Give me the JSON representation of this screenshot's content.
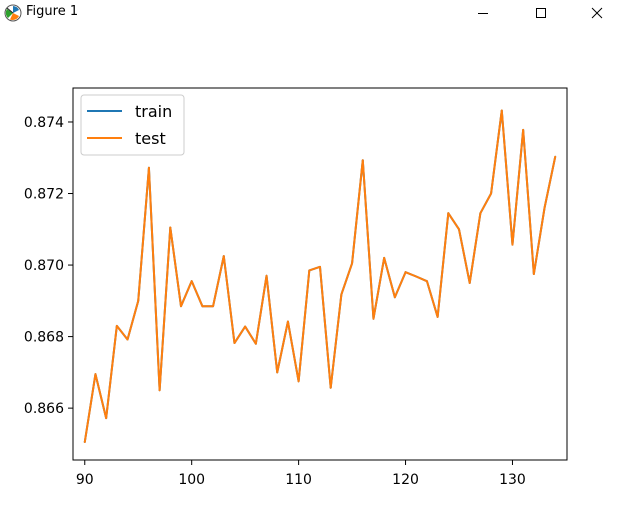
{
  "window": {
    "title": "Figure 1",
    "icon": "matplotlib-icon",
    "controls": [
      "minimize-icon",
      "maximize-icon",
      "close-icon"
    ]
  },
  "chart_data": {
    "type": "line",
    "title": "",
    "xlabel": "",
    "ylabel": "",
    "xlim": [
      88.9,
      135.1
    ],
    "ylim": [
      0.86455,
      0.87495
    ],
    "xticks": [
      90,
      100,
      110,
      120,
      130
    ],
    "yticks": [
      0.866,
      0.868,
      0.87,
      0.872,
      0.874
    ],
    "ytick_labels": [
      "0.866",
      "0.868",
      "0.870",
      "0.872",
      "0.874"
    ],
    "grid": false,
    "legend_position": "top-left",
    "x": [
      90,
      91,
      92,
      93,
      94,
      95,
      96,
      97,
      98,
      99,
      100,
      101,
      102,
      103,
      104,
      105,
      106,
      107,
      108,
      109,
      110,
      111,
      112,
      113,
      114,
      115,
      116,
      117,
      118,
      119,
      120,
      121,
      122,
      123,
      124,
      125,
      126,
      127,
      128,
      129,
      130,
      131,
      132,
      133,
      134
    ],
    "series": [
      {
        "name": "train",
        "color": "#1f77b4",
        "values": [
          0.86505,
          0.86695,
          0.86572,
          0.8683,
          0.86792,
          0.869,
          0.87272,
          0.8665,
          0.87105,
          0.86885,
          0.86955,
          0.86885,
          0.86885,
          0.87025,
          0.86782,
          0.86828,
          0.8678,
          0.8697,
          0.867,
          0.86842,
          0.86675,
          0.86985,
          0.86995,
          0.86657,
          0.86918,
          0.87005,
          0.87293,
          0.8685,
          0.8702,
          0.8691,
          0.8698,
          0.86968,
          0.86955,
          0.86855,
          0.87145,
          0.871,
          0.8695,
          0.87145,
          0.872,
          0.87432,
          0.87057,
          0.87378,
          0.86975,
          0.8716,
          0.87303
        ]
      },
      {
        "name": "test",
        "color": "#ff7f0e",
        "values": [
          0.86505,
          0.86695,
          0.86572,
          0.8683,
          0.86792,
          0.869,
          0.87272,
          0.8665,
          0.87105,
          0.86885,
          0.86955,
          0.86885,
          0.86885,
          0.87025,
          0.86782,
          0.86828,
          0.8678,
          0.8697,
          0.867,
          0.86842,
          0.86675,
          0.86985,
          0.86995,
          0.86657,
          0.86918,
          0.87005,
          0.87293,
          0.8685,
          0.8702,
          0.8691,
          0.8698,
          0.86968,
          0.86955,
          0.86855,
          0.87145,
          0.871,
          0.8695,
          0.87145,
          0.872,
          0.87432,
          0.87057,
          0.87378,
          0.86975,
          0.8716,
          0.87303
        ]
      }
    ]
  }
}
